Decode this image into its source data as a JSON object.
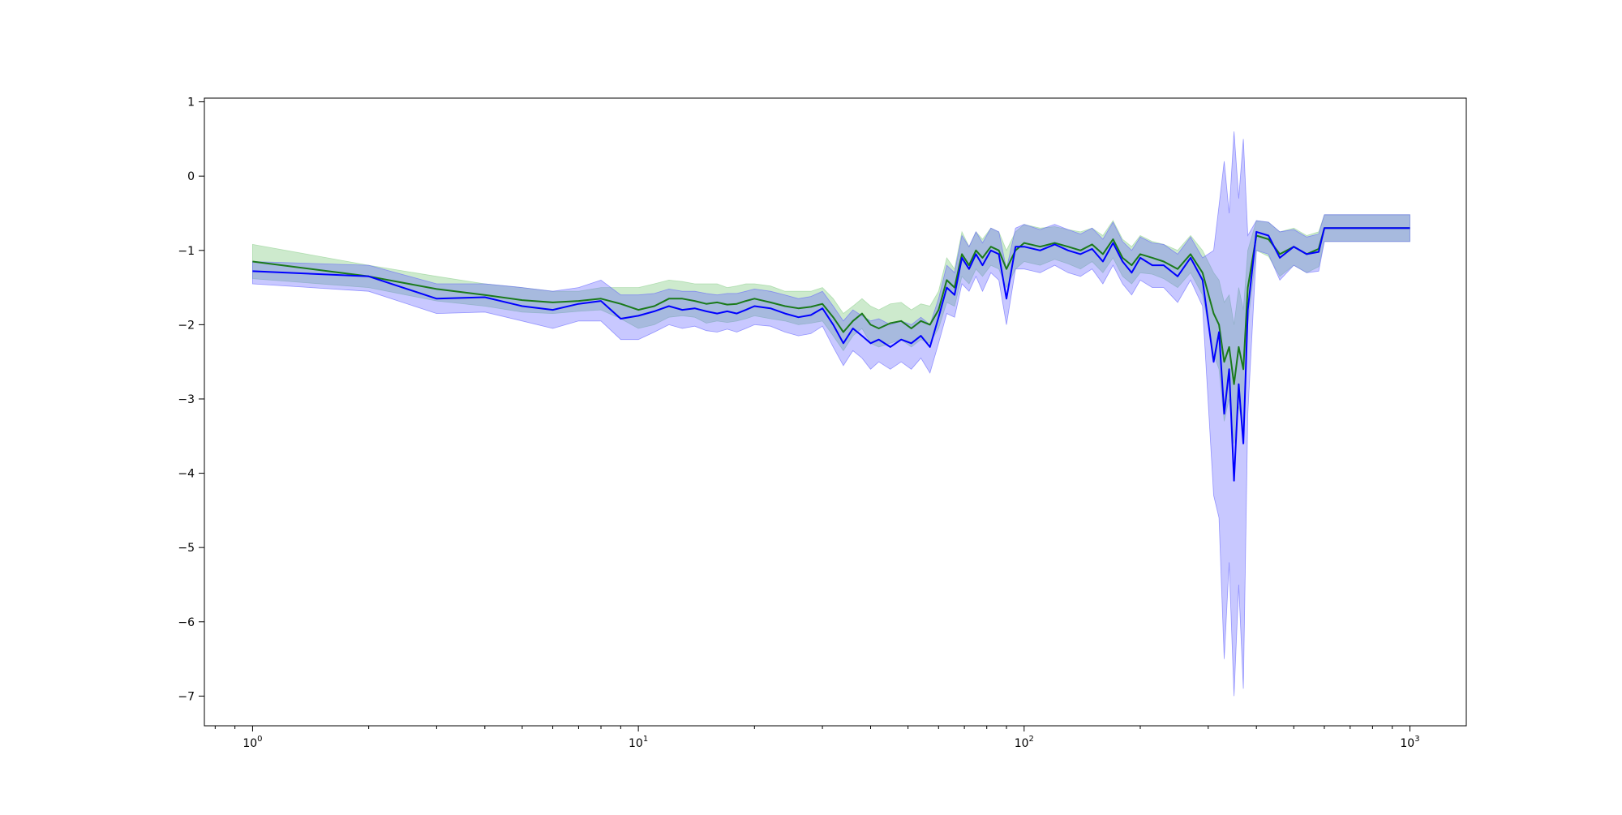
{
  "chart_data": {
    "type": "line",
    "xscale": "log",
    "xlim": [
      0.75,
      1400
    ],
    "ylim": [
      -7.4,
      1.05
    ],
    "grid": false,
    "legend": "none",
    "x_ticks": [
      {
        "value": 1,
        "base": "10",
        "exp": "0"
      },
      {
        "value": 10,
        "base": "10",
        "exp": "1"
      },
      {
        "value": 100,
        "base": "10",
        "exp": "2"
      },
      {
        "value": 1000,
        "base": "10",
        "exp": "3"
      }
    ],
    "y_ticks": [
      1,
      0,
      -1,
      -2,
      -3,
      -4,
      -5,
      -6,
      -7
    ],
    "colors": {
      "green_line": "#1a7a1a",
      "green_band": "#90d090",
      "blue_line": "#0000ff",
      "blue_band": "#6060ff"
    },
    "series": [
      {
        "color": "green",
        "x": [
          1,
          2,
          3,
          4,
          5,
          6,
          7,
          8,
          9,
          10,
          11,
          12,
          13,
          14,
          15,
          16,
          17,
          18,
          19,
          20,
          22,
          24,
          26,
          28,
          30,
          32,
          34,
          36,
          38,
          40,
          42,
          45,
          48,
          51,
          54,
          57,
          60,
          63,
          66,
          69,
          72,
          75,
          78,
          82,
          86,
          90,
          95,
          100,
          110,
          120,
          130,
          140,
          150,
          160,
          170,
          180,
          190,
          200,
          215,
          230,
          250,
          270,
          290,
          310,
          320,
          330,
          340,
          350,
          360,
          370,
          380,
          400,
          430,
          460,
          500,
          540,
          580,
          600,
          700,
          800,
          1000
        ],
        "y": [
          -1.15,
          -1.35,
          -1.52,
          -1.6,
          -1.67,
          -1.7,
          -1.68,
          -1.65,
          -1.72,
          -1.8,
          -1.75,
          -1.65,
          -1.65,
          -1.68,
          -1.72,
          -1.7,
          -1.73,
          -1.72,
          -1.68,
          -1.65,
          -1.7,
          -1.75,
          -1.78,
          -1.76,
          -1.72,
          -1.9,
          -2.1,
          -1.95,
          -1.85,
          -2.0,
          -2.05,
          -1.98,
          -1.95,
          -2.05,
          -1.95,
          -2.0,
          -1.8,
          -1.4,
          -1.5,
          -1.05,
          -1.2,
          -1.0,
          -1.1,
          -0.95,
          -1.0,
          -1.25,
          -1.0,
          -0.9,
          -0.95,
          -0.9,
          -0.95,
          -1.0,
          -0.92,
          -1.05,
          -0.85,
          -1.1,
          -1.2,
          -1.05,
          -1.1,
          -1.15,
          -1.25,
          -1.05,
          -1.3,
          -1.85,
          -2.0,
          -2.5,
          -2.3,
          -2.8,
          -2.3,
          -2.6,
          -1.5,
          -0.8,
          -0.85,
          -1.05,
          -0.95,
          -1.05,
          -0.98,
          -0.7,
          -0.7,
          -0.7,
          -0.7
        ],
        "upper": [
          -0.92,
          -1.2,
          -1.35,
          -1.45,
          -1.5,
          -1.55,
          -1.55,
          -1.5,
          -1.5,
          -1.5,
          -1.45,
          -1.4,
          -1.42,
          -1.45,
          -1.45,
          -1.45,
          -1.5,
          -1.48,
          -1.45,
          -1.45,
          -1.48,
          -1.55,
          -1.55,
          -1.55,
          -1.5,
          -1.65,
          -1.85,
          -1.75,
          -1.65,
          -1.75,
          -1.8,
          -1.72,
          -1.7,
          -1.8,
          -1.72,
          -1.75,
          -1.55,
          -1.1,
          -1.25,
          -0.75,
          -0.95,
          -0.75,
          -0.85,
          -0.7,
          -0.75,
          -1.0,
          -0.75,
          -0.65,
          -0.7,
          -0.68,
          -0.72,
          -0.75,
          -0.7,
          -0.8,
          -0.6,
          -0.85,
          -0.95,
          -0.8,
          -0.88,
          -0.92,
          -1.0,
          -0.8,
          -1.0,
          -1.3,
          -1.4,
          -1.7,
          -1.6,
          -2.0,
          -1.5,
          -1.8,
          -1.0,
          -0.6,
          -0.62,
          -0.75,
          -0.7,
          -0.8,
          -0.75,
          -0.52,
          -0.52,
          -0.52,
          -0.52
        ],
        "lower": [
          -1.38,
          -1.5,
          -1.68,
          -1.75,
          -1.83,
          -1.85,
          -1.82,
          -1.8,
          -1.92,
          -2.05,
          -2.0,
          -1.9,
          -1.88,
          -1.9,
          -1.98,
          -1.95,
          -1.97,
          -1.95,
          -1.92,
          -1.88,
          -1.92,
          -1.95,
          -2.0,
          -1.98,
          -1.95,
          -2.15,
          -2.35,
          -2.15,
          -2.05,
          -2.25,
          -2.3,
          -2.25,
          -2.2,
          -2.3,
          -2.2,
          -2.25,
          -2.05,
          -1.7,
          -1.75,
          -1.35,
          -1.45,
          -1.25,
          -1.35,
          -1.2,
          -1.25,
          -1.5,
          -1.25,
          -1.15,
          -1.2,
          -1.12,
          -1.18,
          -1.25,
          -1.15,
          -1.3,
          -1.1,
          -1.35,
          -1.45,
          -1.3,
          -1.32,
          -1.38,
          -1.5,
          -1.3,
          -1.6,
          -2.4,
          -2.6,
          -3.3,
          -3.0,
          -3.6,
          -3.1,
          -3.4,
          -2.0,
          -1.0,
          -1.08,
          -1.35,
          -1.2,
          -1.3,
          -1.22,
          -0.88,
          -0.88,
          -0.88,
          -0.88
        ]
      },
      {
        "color": "blue",
        "x": [
          1,
          2,
          3,
          4,
          5,
          6,
          7,
          8,
          9,
          10,
          11,
          12,
          13,
          14,
          15,
          16,
          17,
          18,
          19,
          20,
          22,
          24,
          26,
          28,
          30,
          32,
          34,
          36,
          38,
          40,
          42,
          45,
          48,
          51,
          54,
          57,
          60,
          63,
          66,
          69,
          72,
          75,
          78,
          82,
          86,
          90,
          95,
          100,
          110,
          120,
          130,
          140,
          150,
          160,
          170,
          180,
          190,
          200,
          215,
          230,
          250,
          270,
          290,
          310,
          320,
          330,
          340,
          350,
          360,
          370,
          380,
          400,
          430,
          460,
          500,
          540,
          580,
          600,
          700,
          800,
          1000
        ],
        "y": [
          -1.28,
          -1.35,
          -1.65,
          -1.63,
          -1.75,
          -1.8,
          -1.72,
          -1.68,
          -1.92,
          -1.88,
          -1.82,
          -1.75,
          -1.8,
          -1.78,
          -1.82,
          -1.85,
          -1.82,
          -1.85,
          -1.8,
          -1.75,
          -1.78,
          -1.85,
          -1.9,
          -1.87,
          -1.78,
          -2.0,
          -2.25,
          -2.05,
          -2.15,
          -2.25,
          -2.2,
          -2.3,
          -2.2,
          -2.25,
          -2.15,
          -2.3,
          -1.9,
          -1.5,
          -1.6,
          -1.1,
          -1.25,
          -1.05,
          -1.2,
          -1.0,
          -1.05,
          -1.65,
          -0.95,
          -0.95,
          -1.0,
          -0.92,
          -1.0,
          -1.05,
          -0.98,
          -1.15,
          -0.9,
          -1.15,
          -1.3,
          -1.1,
          -1.2,
          -1.2,
          -1.35,
          -1.1,
          -1.4,
          -2.5,
          -2.1,
          -3.2,
          -2.6,
          -4.1,
          -2.8,
          -3.6,
          -1.8,
          -0.75,
          -0.8,
          -1.1,
          -0.95,
          -1.05,
          -1.02,
          -0.7,
          -0.7,
          -0.7,
          -0.7
        ],
        "upper": [
          -1.15,
          -1.2,
          -1.45,
          -1.45,
          -1.5,
          -1.55,
          -1.5,
          -1.4,
          -1.6,
          -1.6,
          -1.58,
          -1.52,
          -1.55,
          -1.55,
          -1.58,
          -1.6,
          -1.58,
          -1.58,
          -1.55,
          -1.52,
          -1.55,
          -1.6,
          -1.65,
          -1.62,
          -1.55,
          -1.75,
          -1.95,
          -1.8,
          -1.88,
          -1.95,
          -1.92,
          -2.0,
          -1.95,
          -2.0,
          -1.9,
          -2.0,
          -1.65,
          -1.2,
          -1.3,
          -0.8,
          -0.95,
          -0.75,
          -0.9,
          -0.7,
          -0.75,
          -1.25,
          -0.7,
          -0.65,
          -0.72,
          -0.65,
          -0.72,
          -0.78,
          -0.7,
          -0.85,
          -0.62,
          -0.88,
          -1.0,
          -0.82,
          -0.9,
          -0.92,
          -1.05,
          -0.82,
          -1.1,
          -1.0,
          -0.4,
          0.2,
          -0.5,
          0.6,
          -0.3,
          0.5,
          -0.8,
          -0.6,
          -0.62,
          -0.75,
          -0.72,
          -0.82,
          -0.78,
          -0.52,
          -0.52,
          -0.52,
          -0.52
        ],
        "lower": [
          -1.45,
          -1.55,
          -1.85,
          -1.83,
          -1.95,
          -2.05,
          -1.95,
          -1.95,
          -2.2,
          -2.2,
          -2.1,
          -2.0,
          -2.05,
          -2.02,
          -2.08,
          -2.1,
          -2.06,
          -2.1,
          -2.05,
          -2.0,
          -2.02,
          -2.1,
          -2.15,
          -2.12,
          -2.02,
          -2.3,
          -2.55,
          -2.35,
          -2.45,
          -2.6,
          -2.5,
          -2.6,
          -2.5,
          -2.6,
          -2.45,
          -2.65,
          -2.25,
          -1.85,
          -1.9,
          -1.45,
          -1.55,
          -1.35,
          -1.55,
          -1.3,
          -1.4,
          -2.0,
          -1.25,
          -1.25,
          -1.3,
          -1.2,
          -1.3,
          -1.35,
          -1.25,
          -1.45,
          -1.2,
          -1.45,
          -1.6,
          -1.4,
          -1.5,
          -1.5,
          -1.7,
          -1.4,
          -1.75,
          -4.3,
          -4.6,
          -6.5,
          -5.2,
          -7.0,
          -5.5,
          -6.9,
          -3.2,
          -1.0,
          -1.05,
          -1.4,
          -1.2,
          -1.3,
          -1.28,
          -0.88,
          -0.88,
          -0.88,
          -0.88
        ]
      }
    ]
  }
}
